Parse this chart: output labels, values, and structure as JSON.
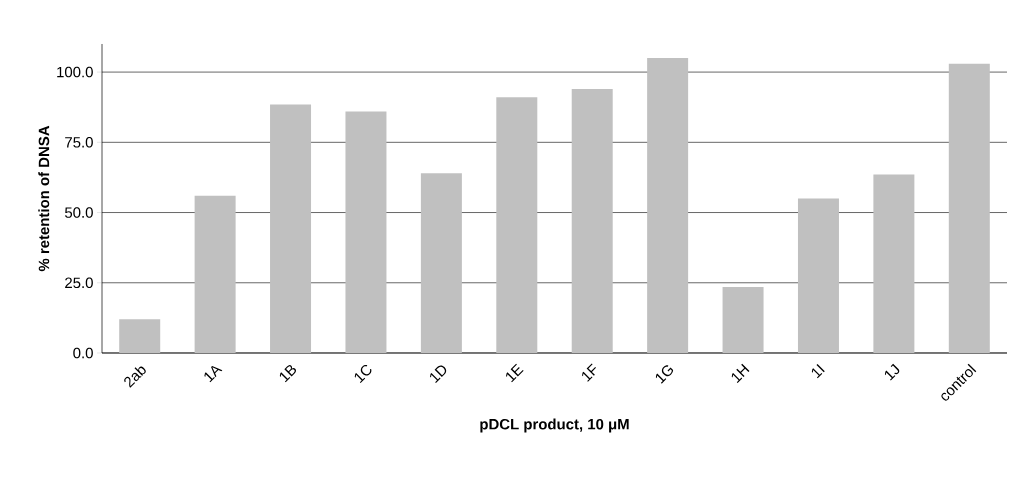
{
  "chart_data": {
    "type": "bar",
    "xlabel": "pDCL product, 10 μM",
    "ylabel": "% retention of DNSA",
    "categories": [
      "2ab",
      "1A",
      "1B",
      "1C",
      "1D",
      "1E",
      "1F",
      "1G",
      "1H",
      "1I",
      "1J",
      "control"
    ],
    "values": [
      12,
      56,
      88.5,
      86,
      64,
      91,
      94,
      105,
      23.5,
      55,
      63.5,
      103
    ],
    "color": "#c0c0c0",
    "ylim": [
      0,
      110
    ],
    "yticks": [
      {
        "value": 0,
        "label": "0.0"
      },
      {
        "value": 25,
        "label": "25.0"
      },
      {
        "value": 50,
        "label": "50.0"
      },
      {
        "value": 75,
        "label": "75.0"
      },
      {
        "value": 100,
        "label": "100.0"
      }
    ],
    "grid": "y"
  }
}
